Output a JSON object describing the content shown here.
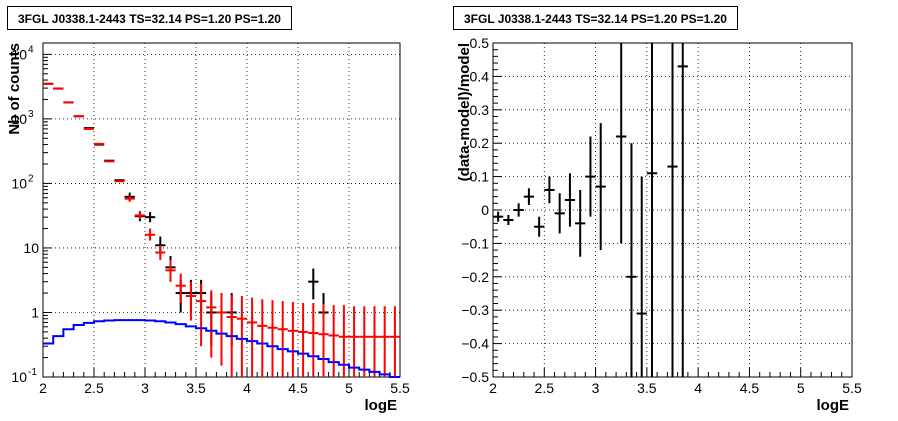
{
  "chart_data": [
    {
      "type": "histogram",
      "title": "3FGL J0338.1-2443 TS=32.14 PS=1.20 PS=1.20",
      "xlabel": "logE",
      "ylabel": "Nb of counts",
      "xlim": [
        2.0,
        5.5
      ],
      "ylim": [
        0.1,
        15000
      ],
      "log_y": true,
      "grid": true,
      "x_ticks": [
        "2",
        "2.5",
        "3",
        "3.5",
        "4",
        "4.5",
        "5",
        "5.5"
      ],
      "y_ticks": [
        "10^{-1}",
        "1",
        "10",
        "10^{2}",
        "10^{3}",
        "10^{4}"
      ],
      "bin_width": 0.1,
      "series": [
        {
          "kind": "data",
          "color": "#000000",
          "points": [
            {
              "x": 2.05,
              "y": 3500
            },
            {
              "x": 2.15,
              "y": 2950
            },
            {
              "x": 2.25,
              "y": 1800
            },
            {
              "x": 2.35,
              "y": 1100
            },
            {
              "x": 2.45,
              "y": 720
            },
            {
              "x": 2.55,
              "y": 400
            },
            {
              "x": 2.65,
              "y": 225
            },
            {
              "x": 2.75,
              "y": 112
            },
            {
              "x": 2.85,
              "y": 62,
              "lo": 53,
              "hi": 72
            },
            {
              "x": 2.95,
              "y": 31,
              "lo": 26,
              "hi": 37
            },
            {
              "x": 3.05,
              "y": 30,
              "lo": 25,
              "hi": 36
            },
            {
              "x": 3.15,
              "y": 11,
              "lo": 8,
              "hi": 15
            },
            {
              "x": 3.25,
              "y": 5,
              "lo": 3,
              "hi": 7.5
            },
            {
              "x": 3.35,
              "y": 2,
              "lo": 1.0,
              "hi": 3.2
            },
            {
              "x": 3.45,
              "y": 2,
              "lo": 1.0,
              "hi": 3.2
            },
            {
              "x": 3.55,
              "y": 2,
              "lo": 1.0,
              "hi": 3.2
            },
            {
              "x": 3.65,
              "y": 1,
              "lo": 0.3,
              "hi": 2.0
            },
            {
              "x": 3.75,
              "y": 1,
              "lo": 0.3,
              "hi": 2.0
            },
            {
              "x": 3.85,
              "y": 1,
              "lo": 0.3,
              "hi": 2.0
            },
            {
              "x": 4.65,
              "y": 3,
              "lo": 1.6,
              "hi": 4.8
            },
            {
              "x": 4.75,
              "y": 1,
              "lo": 0.3,
              "hi": 2.0
            }
          ]
        },
        {
          "kind": "model",
          "color": "#ff0000",
          "points": [
            {
              "x": 2.0,
              "y": 3500
            },
            {
              "x": 2.1,
              "y": 2950
            },
            {
              "x": 2.2,
              "y": 1800
            },
            {
              "x": 2.3,
              "y": 1100
            },
            {
              "x": 2.4,
              "y": 700
            },
            {
              "x": 2.5,
              "y": 410
            },
            {
              "x": 2.6,
              "y": 220
            },
            {
              "x": 2.7,
              "y": 108
            },
            {
              "x": 2.8,
              "y": 58,
              "lo": 52,
              "hi": 64
            },
            {
              "x": 2.9,
              "y": 32,
              "lo": 28,
              "hi": 36
            },
            {
              "x": 3.0,
              "y": 16,
              "lo": 13,
              "hi": 20
            },
            {
              "x": 3.1,
              "y": 8.5,
              "lo": 6.5,
              "hi": 11
            },
            {
              "x": 3.2,
              "y": 4.5,
              "lo": 3.0,
              "hi": 6.5
            },
            {
              "x": 3.3,
              "y": 2.6,
              "lo": 1.4,
              "hi": 4.0
            },
            {
              "x": 3.4,
              "y": 1.8,
              "lo": 0.75,
              "hi": 3.0
            },
            {
              "x": 3.5,
              "y": 1.5,
              "lo": 0.3,
              "hi": 2.8
            },
            {
              "x": 3.6,
              "y": 1.2,
              "lo": 0.2,
              "hi": 2.2
            },
            {
              "x": 3.7,
              "y": 1.0,
              "lo": 0.15,
              "hi": 2.0
            },
            {
              "x": 3.8,
              "y": 0.85,
              "lo": 0.1,
              "hi": 1.85
            },
            {
              "x": 3.9,
              "y": 0.8,
              "lo": 0.1,
              "hi": 1.8
            },
            {
              "x": 4.0,
              "y": 0.7,
              "lo": 0.1,
              "hi": 1.7
            },
            {
              "x": 4.1,
              "y": 0.62,
              "lo": 0.1,
              "hi": 1.6
            },
            {
              "x": 4.2,
              "y": 0.58,
              "lo": 0.1,
              "hi": 1.55
            },
            {
              "x": 4.3,
              "y": 0.55,
              "lo": 0.1,
              "hi": 1.5
            },
            {
              "x": 4.4,
              "y": 0.52,
              "lo": 0.1,
              "hi": 1.45
            },
            {
              "x": 4.5,
              "y": 0.5,
              "lo": 0.1,
              "hi": 1.4
            },
            {
              "x": 4.6,
              "y": 0.48,
              "lo": 0.1,
              "hi": 1.4
            },
            {
              "x": 4.7,
              "y": 0.46,
              "lo": 0.1,
              "hi": 1.35
            },
            {
              "x": 4.8,
              "y": 0.44,
              "lo": 0.1,
              "hi": 1.3
            },
            {
              "x": 4.9,
              "y": 0.42,
              "lo": 0.1,
              "hi": 1.3
            },
            {
              "x": 5.0,
              "y": 0.42,
              "lo": 0.1,
              "hi": 1.25
            },
            {
              "x": 5.1,
              "y": 0.42,
              "lo": 0.1,
              "hi": 1.25
            },
            {
              "x": 5.2,
              "y": 0.42,
              "lo": 0.1,
              "hi": 1.25
            },
            {
              "x": 5.3,
              "y": 0.42,
              "lo": 0.1,
              "hi": 1.25
            },
            {
              "x": 5.4,
              "y": 0.42,
              "lo": 0.1,
              "hi": 1.25
            }
          ]
        },
        {
          "kind": "step",
          "color": "#0000ff",
          "bin_edges": [
            2.0,
            2.1,
            2.2,
            2.3,
            2.4,
            2.5,
            2.6,
            2.7,
            2.8,
            2.9,
            3.0,
            3.1,
            3.2,
            3.3,
            3.4,
            3.5,
            3.6,
            3.7,
            3.8,
            3.9,
            4.0,
            4.1,
            4.2,
            4.3,
            4.4,
            4.5,
            4.6,
            4.7,
            4.8,
            4.9,
            5.0,
            5.1,
            5.2,
            5.3,
            5.4,
            5.5
          ],
          "values": [
            0.33,
            0.43,
            0.55,
            0.64,
            0.69,
            0.73,
            0.75,
            0.76,
            0.76,
            0.76,
            0.75,
            0.73,
            0.7,
            0.66,
            0.61,
            0.57,
            0.52,
            0.47,
            0.43,
            0.39,
            0.36,
            0.33,
            0.3,
            0.27,
            0.25,
            0.23,
            0.21,
            0.19,
            0.17,
            0.155,
            0.14,
            0.13,
            0.12,
            0.11,
            0.1
          ]
        }
      ]
    },
    {
      "type": "scatter",
      "title": "3FGL J0338.1-2443 TS=32.14 PS=1.20 PS=1.20",
      "xlabel": "logE",
      "ylabel": "(data-model)/model",
      "xlim": [
        2.0,
        5.5
      ],
      "ylim": [
        -0.5,
        0.5
      ],
      "grid": true,
      "x_ticks": [
        "2",
        "2.5",
        "3",
        "3.5",
        "4",
        "4.5",
        "5",
        "5.5"
      ],
      "y_ticks": [
        "-0.5",
        "-0.4",
        "-0.3",
        "-0.2",
        "-0.1",
        "0",
        "0.1",
        "0.2",
        "0.3",
        "0.4",
        "0.5"
      ],
      "bin_width": 0.1,
      "series": [
        {
          "kind": "residuals",
          "color": "#000000",
          "points": [
            {
              "x": 2.05,
              "y": -0.02,
              "lo": -0.035,
              "hi": -0.005
            },
            {
              "x": 2.15,
              "y": -0.03,
              "lo": -0.045,
              "hi": -0.015
            },
            {
              "x": 2.25,
              "y": 0.0,
              "lo": -0.02,
              "hi": 0.02
            },
            {
              "x": 2.35,
              "y": 0.04,
              "lo": 0.015,
              "hi": 0.065
            },
            {
              "x": 2.45,
              "y": -0.05,
              "lo": -0.08,
              "hi": -0.02
            },
            {
              "x": 2.55,
              "y": 0.06,
              "lo": 0.02,
              "hi": 0.1
            },
            {
              "x": 2.65,
              "y": -0.01,
              "lo": -0.07,
              "hi": 0.05
            },
            {
              "x": 2.75,
              "y": 0.03,
              "lo": -0.05,
              "hi": 0.11
            },
            {
              "x": 2.85,
              "y": -0.04,
              "lo": -0.14,
              "hi": 0.06
            },
            {
              "x": 2.95,
              "y": 0.1,
              "lo": -0.02,
              "hi": 0.22
            },
            {
              "x": 3.05,
              "y": 0.07,
              "lo": -0.12,
              "hi": 0.26
            },
            {
              "x": 3.25,
              "y": 0.22,
              "lo": -0.1,
              "hi": 0.5
            },
            {
              "x": 3.35,
              "y": -0.2,
              "lo": -0.5,
              "hi": 0.2
            },
            {
              "x": 3.45,
              "y": -0.31,
              "lo": -0.5,
              "hi": 0.1
            },
            {
              "x": 3.55,
              "y": 0.11,
              "lo": -0.5,
              "hi": 0.5
            },
            {
              "x": 3.75,
              "y": 0.13,
              "lo": -0.5,
              "hi": 0.5
            },
            {
              "x": 3.85,
              "y": 0.43,
              "lo": -0.5,
              "hi": 0.5
            }
          ]
        }
      ]
    }
  ]
}
